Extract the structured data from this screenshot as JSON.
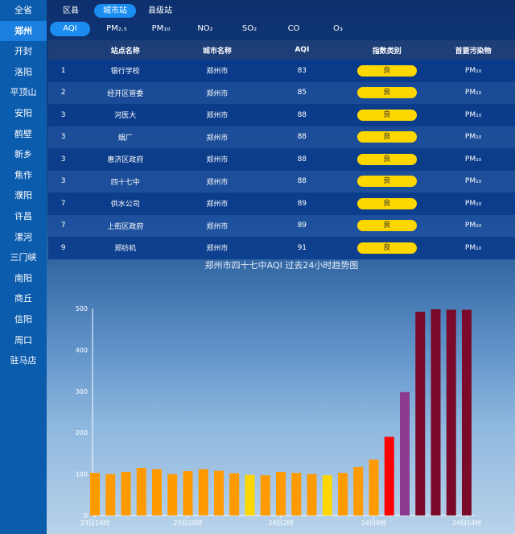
{
  "sidebar": {
    "items": [
      "全省",
      "郑州",
      "开封",
      "洛阳",
      "平顶山",
      "安阳",
      "鹤壁",
      "新乡",
      "焦作",
      "濮阳",
      "许昌",
      "漯河",
      "三门峡",
      "南阳",
      "商丘",
      "信阳",
      "周口",
      "驻马店"
    ],
    "active_index": 1
  },
  "tabs": {
    "items": [
      "区县",
      "城市站",
      "县级站"
    ],
    "active_index": 1
  },
  "pollutant_tabs": {
    "items": [
      "AQI",
      "PM₂.₅",
      "PM₁₀",
      "NO₂",
      "SO₂",
      "CO",
      "O₃"
    ],
    "active_index": 0
  },
  "table": {
    "headers": [
      "",
      "站点名称",
      "城市名称",
      "AQI",
      "指数类别",
      "首要污染物"
    ],
    "rows": [
      {
        "rank": "1",
        "station": "银行学校",
        "city": "郑州市",
        "aqi": "83",
        "category": "良",
        "pollutant": "PM₁₀"
      },
      {
        "rank": "2",
        "station": "经开区管委",
        "city": "郑州市",
        "aqi": "85",
        "category": "良",
        "pollutant": "PM₁₀"
      },
      {
        "rank": "3",
        "station": "河医大",
        "city": "郑州市",
        "aqi": "88",
        "category": "良",
        "pollutant": "PM₁₀"
      },
      {
        "rank": "3",
        "station": "烟厂",
        "city": "郑州市",
        "aqi": "88",
        "category": "良",
        "pollutant": "PM₁₀"
      },
      {
        "rank": "3",
        "station": "惠济区政府",
        "city": "郑州市",
        "aqi": "88",
        "category": "良",
        "pollutant": "PM₁₀"
      },
      {
        "rank": "3",
        "station": "四十七中",
        "city": "郑州市",
        "aqi": "88",
        "category": "良",
        "pollutant": "PM₁₀"
      },
      {
        "rank": "7",
        "station": "供水公司",
        "city": "郑州市",
        "aqi": "89",
        "category": "良",
        "pollutant": "PM₁₀"
      },
      {
        "rank": "7",
        "station": "上街区政府",
        "city": "郑州市",
        "aqi": "89",
        "category": "良",
        "pollutant": "PM₁₀"
      },
      {
        "rank": "9",
        "station": "郑纺机",
        "city": "郑州市",
        "aqi": "91",
        "category": "良",
        "pollutant": "PM₁₀"
      }
    ]
  },
  "colors": {
    "badge_good": "#ffd700",
    "aqi_good": "#ffd700",
    "aqi_moderate": "#ff9a00",
    "aqi_unhealthy": "#ff0000",
    "aqi_very_unhealthy": "#8b3a8f",
    "aqi_hazardous": "#7a0a2a"
  },
  "chart_data": {
    "type": "bar",
    "title": "郑州市四十七中AQI 过去24小时趋势图",
    "xlabel": "",
    "ylabel": "",
    "ylim": [
      0,
      500
    ],
    "yticks": [
      0,
      100,
      200,
      300,
      400,
      500
    ],
    "xtick_labels": [
      "23日14时",
      "23日20时",
      "24日2时",
      "24日8时",
      "24日14时"
    ],
    "xtick_indices": [
      0,
      6,
      12,
      18,
      24
    ],
    "values": [
      103,
      100,
      105,
      115,
      112,
      100,
      107,
      112,
      108,
      102,
      98,
      97,
      105,
      103,
      100,
      97,
      103,
      117,
      135,
      190,
      298,
      492,
      498,
      497,
      497
    ],
    "colors": [
      "#ff9a00",
      "#ff9a00",
      "#ff9a00",
      "#ff9a00",
      "#ff9a00",
      "#ff9a00",
      "#ff9a00",
      "#ff9a00",
      "#ff9a00",
      "#ff9a00",
      "#ffd700",
      "#ff9a00",
      "#ff9a00",
      "#ff9a00",
      "#ff9a00",
      "#ffd700",
      "#ff9a00",
      "#ff9a00",
      "#ff9a00",
      "#ff0000",
      "#8b3a8f",
      "#7a0a2a",
      "#7a0a2a",
      "#7a0a2a",
      "#7a0a2a"
    ]
  }
}
